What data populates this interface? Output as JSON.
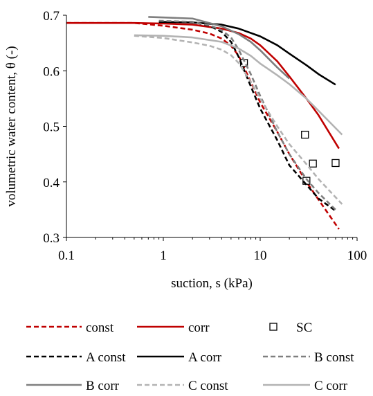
{
  "chart_data": {
    "type": "line",
    "xlabel": "suction, s (kPa)",
    "ylabel": "volumetric water content, θ (-)",
    "x_scale": "log",
    "xlim": [
      0.1,
      100
    ],
    "ylim": [
      0.3,
      0.7
    ],
    "x_ticks": [
      "0.1",
      "1",
      "10",
      "100"
    ],
    "y_ticks": [
      "0.3",
      "0.4",
      "0.5",
      "0.6",
      "0.7"
    ],
    "grid": false,
    "legend_position": "bottom",
    "series": [
      {
        "name": "const",
        "color": "#c00000",
        "dash": "dashed",
        "x": [
          0.1,
          0.5,
          1,
          2,
          3,
          4,
          5,
          6,
          8,
          10,
          15,
          20,
          30,
          40,
          65
        ],
        "y": [
          0.686,
          0.686,
          0.681,
          0.674,
          0.667,
          0.658,
          0.645,
          0.627,
          0.58,
          0.543,
          0.49,
          0.45,
          0.4,
          0.368,
          0.315
        ]
      },
      {
        "name": "corr",
        "color": "#c00000",
        "dash": "solid",
        "x": [
          0.1,
          0.5,
          1,
          2,
          4,
          6,
          8,
          10,
          15,
          20,
          30,
          40,
          65
        ],
        "y": [
          0.686,
          0.686,
          0.685,
          0.683,
          0.676,
          0.668,
          0.658,
          0.646,
          0.617,
          0.59,
          0.55,
          0.52,
          0.46
        ]
      },
      {
        "name": "SC",
        "color": "#000000",
        "marker": "open-square",
        "x": [
          6.8,
          29,
          30,
          35,
          60
        ],
        "y": [
          0.614,
          0.485,
          0.402,
          0.433,
          0.434
        ]
      },
      {
        "name": "A const",
        "color": "#000000",
        "dash": "dashed",
        "x": [
          0.9,
          2,
          3,
          4,
          5,
          6,
          8,
          10,
          15,
          20,
          30,
          40,
          60
        ],
        "y": [
          0.688,
          0.688,
          0.681,
          0.67,
          0.652,
          0.625,
          0.572,
          0.532,
          0.475,
          0.43,
          0.395,
          0.37,
          0.348
        ]
      },
      {
        "name": "A corr",
        "color": "#000000",
        "dash": "solid",
        "x": [
          0.9,
          2,
          4,
          6,
          10,
          15,
          20,
          30,
          40,
          60
        ],
        "y": [
          0.688,
          0.687,
          0.683,
          0.676,
          0.662,
          0.646,
          0.631,
          0.61,
          0.594,
          0.575
        ]
      },
      {
        "name": "B const",
        "color": "#7f7f7f",
        "dash": "dashed",
        "x": [
          0.9,
          2,
          3,
          4,
          5,
          6,
          8,
          10,
          15,
          20,
          30,
          40,
          60
        ],
        "y": [
          0.69,
          0.688,
          0.682,
          0.673,
          0.66,
          0.638,
          0.594,
          0.555,
          0.49,
          0.45,
          0.405,
          0.38,
          0.35
        ]
      },
      {
        "name": "B corr",
        "color": "#7f7f7f",
        "dash": "solid",
        "x": [
          0.7,
          1,
          2,
          4,
          6,
          8,
          10,
          15,
          20
        ],
        "y": [
          0.697,
          0.696,
          0.694,
          0.68,
          0.666,
          0.652,
          0.637,
          0.606,
          0.586
        ]
      },
      {
        "name": "C const",
        "color": "#b3b3b3",
        "dash": "dashed",
        "x": [
          0.5,
          1,
          2,
          3,
          4,
          5,
          6,
          8,
          10,
          15,
          20,
          30,
          40,
          70
        ],
        "y": [
          0.663,
          0.659,
          0.651,
          0.645,
          0.638,
          0.628,
          0.614,
          0.58,
          0.55,
          0.5,
          0.468,
          0.432,
          0.405,
          0.36
        ]
      },
      {
        "name": "C corr",
        "color": "#b3b3b3",
        "dash": "solid",
        "x": [
          0.5,
          1,
          2,
          4,
          6,
          8,
          10,
          15,
          20,
          30,
          40,
          70
        ],
        "y": [
          0.664,
          0.663,
          0.66,
          0.652,
          0.64,
          0.627,
          0.613,
          0.592,
          0.576,
          0.55,
          0.528,
          0.485
        ]
      }
    ]
  }
}
